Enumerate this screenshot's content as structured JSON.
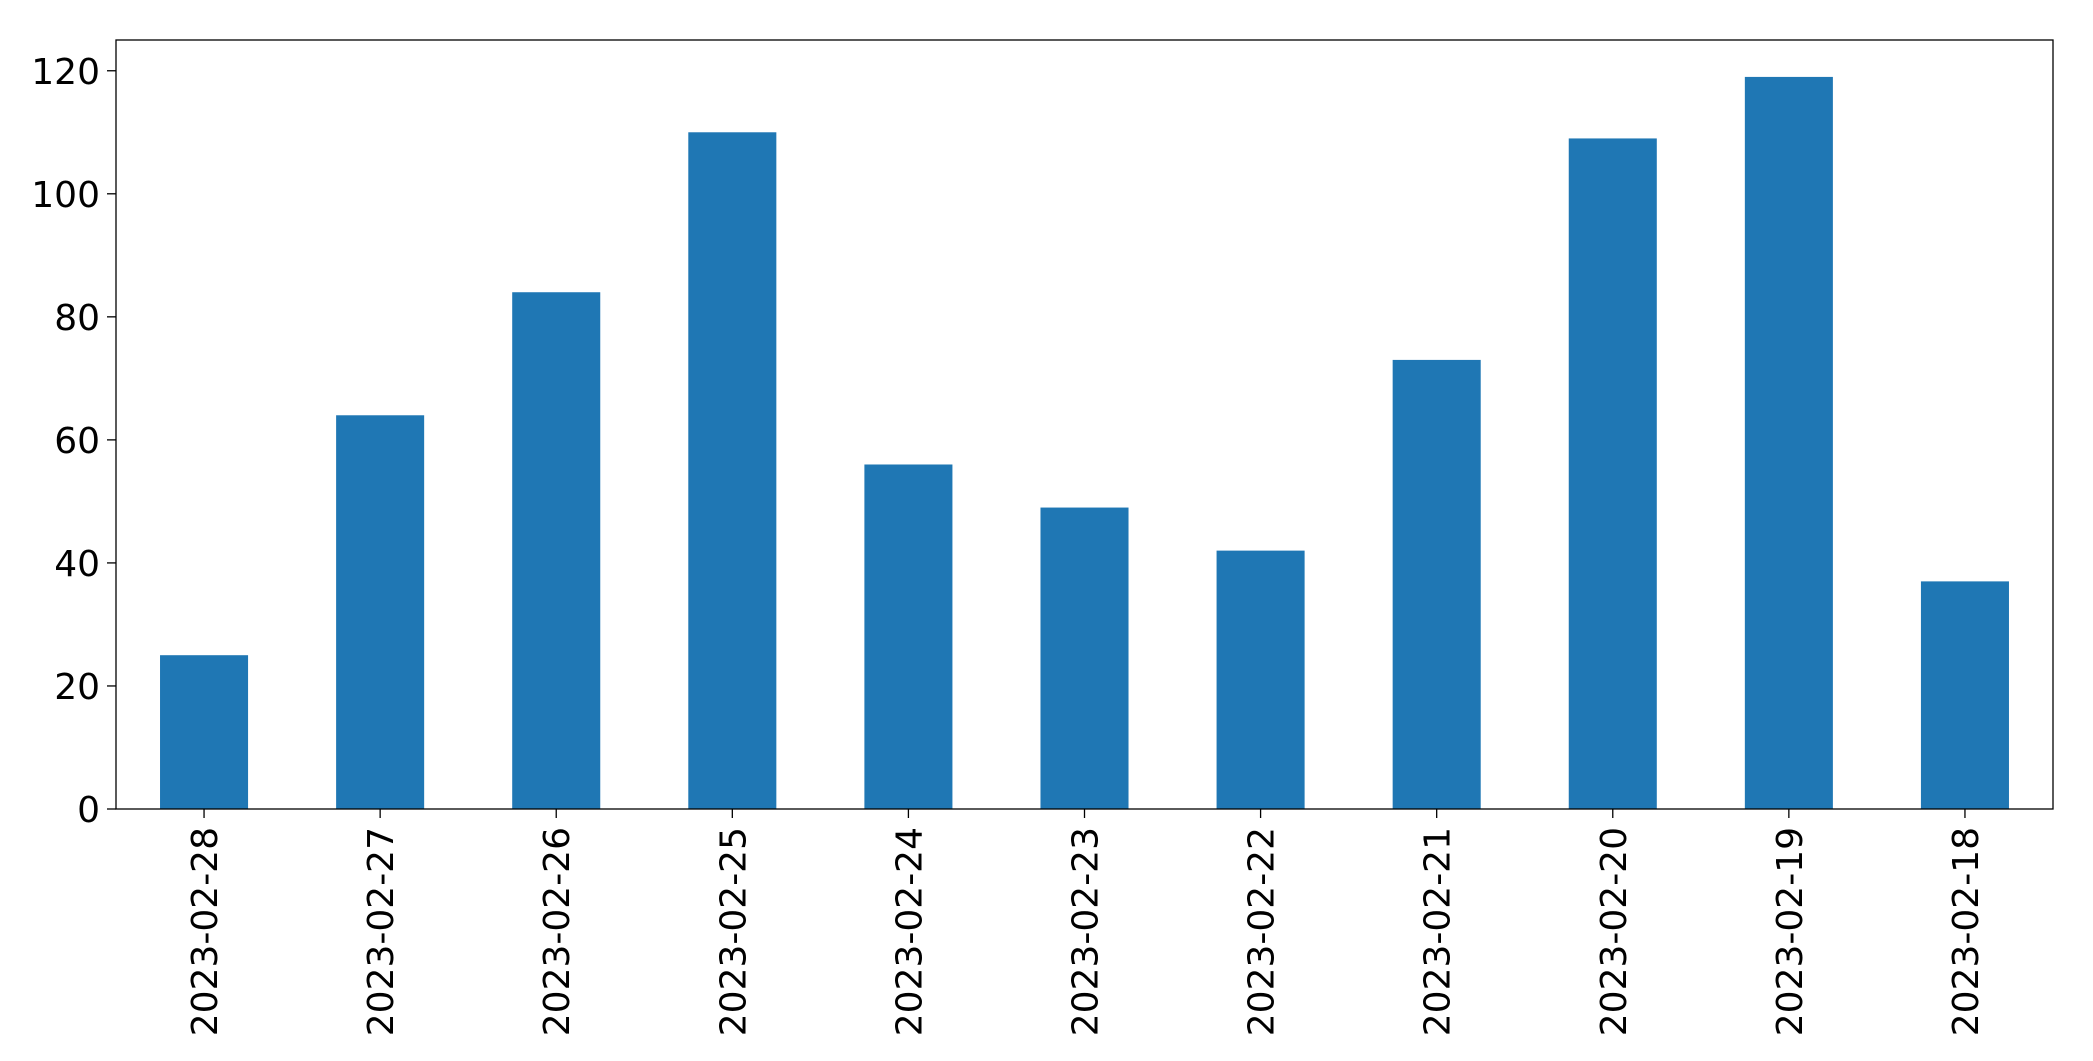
{
  "chart_data": {
    "type": "bar",
    "categories": [
      "2023-02-28",
      "2023-02-27",
      "2023-02-26",
      "2023-02-25",
      "2023-02-24",
      "2023-02-23",
      "2023-02-22",
      "2023-02-21",
      "2023-02-20",
      "2023-02-19",
      "2023-02-18"
    ],
    "values": [
      25,
      64,
      84,
      110,
      56,
      49,
      42,
      73,
      109,
      119,
      37
    ],
    "color": "#1f77b4",
    "ylim": [
      0,
      125
    ],
    "yticks": [
      0,
      20,
      40,
      60,
      80,
      100,
      120
    ],
    "grid": false
  }
}
